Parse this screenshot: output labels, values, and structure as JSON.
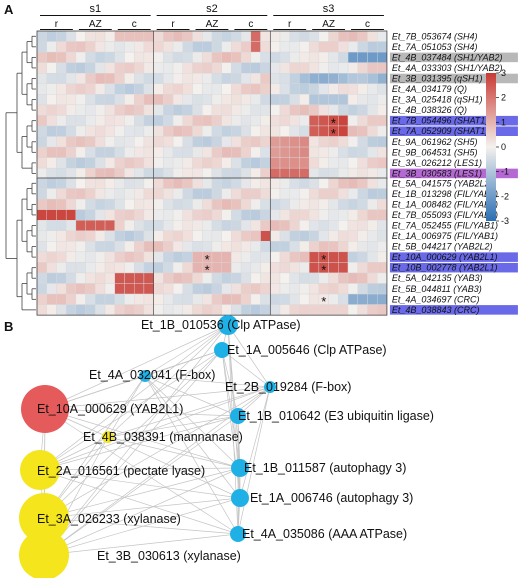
{
  "panel_a": {
    "letter": "A",
    "stages": [
      "s1",
      "s2",
      "s3"
    ],
    "tissues": [
      "r",
      "AZ",
      "c"
    ],
    "colorbar": {
      "ticks": [
        "3",
        "2",
        "1",
        "0",
        "-1",
        "-2",
        "-3"
      ],
      "low": "#2b6fb4",
      "mid": "#f4f1ee",
      "high": "#c83a33"
    },
    "asterisk": "*",
    "cluster1_genes": [
      {
        "label": "Et_7B_053674 (SH4)",
        "hl": ""
      },
      {
        "label": "Et_7A_051053 (SH4)",
        "hl": ""
      },
      {
        "label": "Et_4B_037484 (SH1/YAB2)",
        "hl": "gray"
      },
      {
        "label": "Et_4A_033303 (SH1/YAB2)",
        "hl": ""
      },
      {
        "label": "Et_3B_031395 (qSH1)",
        "hl": "gray"
      },
      {
        "label": "Et_4A_034179 (Q)",
        "hl": ""
      },
      {
        "label": "Et_3A_025418 (qSH1)",
        "hl": ""
      },
      {
        "label": "Et_4B_038326 (Q)",
        "hl": ""
      },
      {
        "label": "Et_7B_054496 (SHAT1)",
        "hl": "blue"
      },
      {
        "label": "Et_7A_052909 (SHAT1)",
        "hl": "blue"
      },
      {
        "label": "Et_9A_061962 (SH5)",
        "hl": ""
      },
      {
        "label": "Et_9B_064531 (SH5)",
        "hl": ""
      },
      {
        "label": "Et_3A_026212 (LES1)",
        "hl": ""
      },
      {
        "label": "Et_3B_030583 (LES1)",
        "hl": "purple"
      }
    ],
    "cluster2_genes": [
      {
        "label": "Et_5A_041575 (YAB2L2)",
        "hl": ""
      },
      {
        "label": "Et_1B_013298 (FIL/YAB1)",
        "hl": ""
      },
      {
        "label": "Et_1A_008482 (FIL/YAB1)",
        "hl": ""
      },
      {
        "label": "Et_7B_055093 (FIL/YAB1)",
        "hl": ""
      },
      {
        "label": "Et_7A_052455 (FIL/YAB1)",
        "hl": ""
      },
      {
        "label": "Et_1A_006975 (FIL/YAB1)",
        "hl": ""
      },
      {
        "label": "Et_5B_044217 (YAB2L2)",
        "hl": ""
      },
      {
        "label": "Et_10A_000629 (YAB2L1)",
        "hl": "blue"
      },
      {
        "label": "Et_10B_002778 (YAB2L1)",
        "hl": "blue"
      },
      {
        "label": "Et_5A_042135 (YAB3)",
        "hl": ""
      },
      {
        "label": "Et_5B_044811 (YAB3)",
        "hl": ""
      },
      {
        "label": "Et_4A_034697 (CRC)",
        "hl": ""
      },
      {
        "label": "Et_4B_038843 (CRC)",
        "hl": "blue"
      }
    ]
  },
  "panel_b": {
    "letter": "B",
    "nodes": [
      {
        "label": "Et_1B_010536 (Clp ATPase)",
        "color": "#1fb1e6",
        "size": 10
      },
      {
        "label": "Et_1A_005646 (Clp ATPase)",
        "color": "#1fb1e6",
        "size": 8
      },
      {
        "label": "Et_4A_032041 (F-box)",
        "color": "#1fb1e6",
        "size": 6
      },
      {
        "label": "Et_2B_019284 (F-box)",
        "color": "#1fb1e6",
        "size": 6
      },
      {
        "label": "Et_10A_000629 (YAB2L1)",
        "color": "#e55a5a",
        "size": 24
      },
      {
        "label": "Et_1B_010642 (E3 ubiquitin ligase)",
        "color": "#1fb1e6",
        "size": 8
      },
      {
        "label": "Et_4B_038391 (mannanase)",
        "color": "#f5e51c",
        "size": 6
      },
      {
        "label": "Et_2A_016561 (pectate lyase)",
        "color": "#f5e51c",
        "size": 20
      },
      {
        "label": "Et_1B_011587 (autophagy 3)",
        "color": "#1fb1e6",
        "size": 9
      },
      {
        "label": "Et_1A_006746 (autophagy 3)",
        "color": "#1fb1e6",
        "size": 9
      },
      {
        "label": "Et_3A_026233 (xylanase)",
        "color": "#f5e51c",
        "size": 25
      },
      {
        "label": "Et_4A_035086 (AAA ATPase)",
        "color": "#1fb1e6",
        "size": 8
      },
      {
        "label": "Et_3B_030613 (xylanase)",
        "color": "#f5e51c",
        "size": 25
      }
    ]
  }
}
